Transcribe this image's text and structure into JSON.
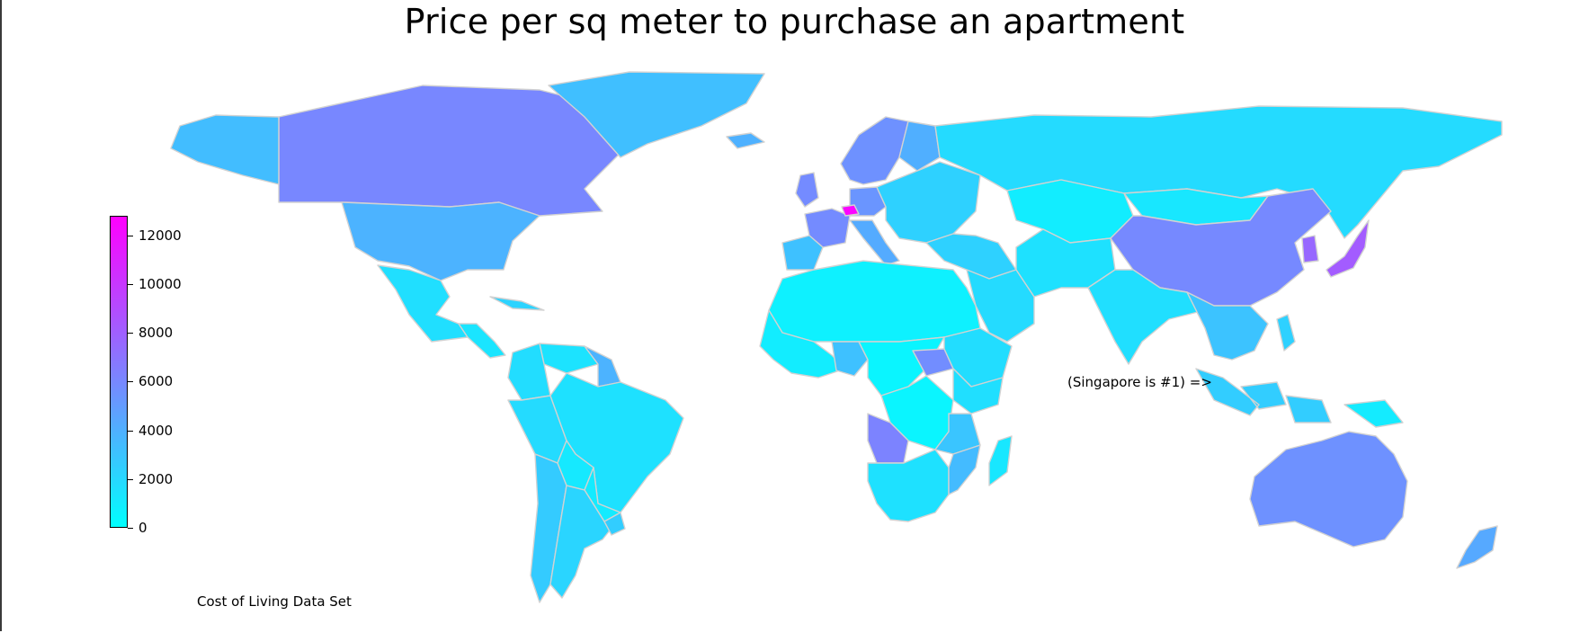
{
  "title": "Price per sq meter to purchase an apartment",
  "colorbar": {
    "ticks": [
      "0",
      "2000",
      "4000",
      "6000",
      "8000",
      "10000",
      "12000"
    ],
    "min": 0,
    "max": 12800,
    "colormap": "cool",
    "low_color": "#00ffff",
    "high_color": "#ff00ff"
  },
  "annotation": "(Singapore is #1) =>",
  "caption": "Cost of Living Data Set",
  "border_color": "#d2d2d2",
  "countries": [
    {
      "name": "Canada",
      "value": 6000
    },
    {
      "name": "Greenland",
      "value": 3200
    },
    {
      "name": "Alaska",
      "value": 3300
    },
    {
      "name": "United States",
      "value": 3800
    },
    {
      "name": "Mexico",
      "value": 1600
    },
    {
      "name": "Central America",
      "value": 1300
    },
    {
      "name": "Cuba",
      "value": 2200
    },
    {
      "name": "Venezuela",
      "value": 1400
    },
    {
      "name": "Colombia",
      "value": 1700
    },
    {
      "name": "Guyana",
      "value": 3800
    },
    {
      "name": "Brazil",
      "value": 1500
    },
    {
      "name": "Peru",
      "value": 1800
    },
    {
      "name": "Bolivia",
      "value": 1100
    },
    {
      "name": "Chile",
      "value": 2600
    },
    {
      "name": "Argentina",
      "value": 2100
    },
    {
      "name": "Paraguay",
      "value": 1000
    },
    {
      "name": "Uruguay",
      "value": 2500
    },
    {
      "name": "Iceland",
      "value": 3900
    },
    {
      "name": "Scandinavia",
      "value": 5500
    },
    {
      "name": "Finland",
      "value": 4000
    },
    {
      "name": "United Kingdom",
      "value": 5800
    },
    {
      "name": "France",
      "value": 5800
    },
    {
      "name": "Spain",
      "value": 3100
    },
    {
      "name": "Germany",
      "value": 5300
    },
    {
      "name": "Switzerland",
      "value": 12600
    },
    {
      "name": "Italy",
      "value": 4200
    },
    {
      "name": "Eastern Europe",
      "value": 2300
    },
    {
      "name": "Russia",
      "value": 1800
    },
    {
      "name": "Kazakhstan",
      "value": 900
    },
    {
      "name": "Mongolia",
      "value": 1200
    },
    {
      "name": "China",
      "value": 5900
    },
    {
      "name": "Korea",
      "value": 7600
    },
    {
      "name": "Japan",
      "value": 8200
    },
    {
      "name": "Middle East",
      "value": 2300
    },
    {
      "name": "Saudi Arabia",
      "value": 1800
    },
    {
      "name": "Iran",
      "value": 1500
    },
    {
      "name": "India",
      "value": 1600
    },
    {
      "name": "Southeast Asia",
      "value": 3000
    },
    {
      "name": "Indonesia",
      "value": 2500
    },
    {
      "name": "Philippines",
      "value": 2300
    },
    {
      "name": "Papua New Guinea",
      "value": 1000
    },
    {
      "name": "Australia",
      "value": 5500
    },
    {
      "name": "New Zealand",
      "value": 4300
    },
    {
      "name": "North Africa",
      "value": 700
    },
    {
      "name": "West Africa",
      "value": 900
    },
    {
      "name": "Nigeria",
      "value": 3100
    },
    {
      "name": "Central Africa",
      "value": 500
    },
    {
      "name": "DR Congo",
      "value": 500
    },
    {
      "name": "Angola",
      "value": 6200
    },
    {
      "name": "East Africa",
      "value": 1600
    },
    {
      "name": "South Sudan",
      "value": 5700
    },
    {
      "name": "Ethiopia",
      "value": 1700
    },
    {
      "name": "Tanzania",
      "value": 2900
    },
    {
      "name": "Southern Africa",
      "value": 1500
    },
    {
      "name": "Mozambique",
      "value": 3400
    },
    {
      "name": "Madagascar",
      "value": 1200
    }
  ]
}
